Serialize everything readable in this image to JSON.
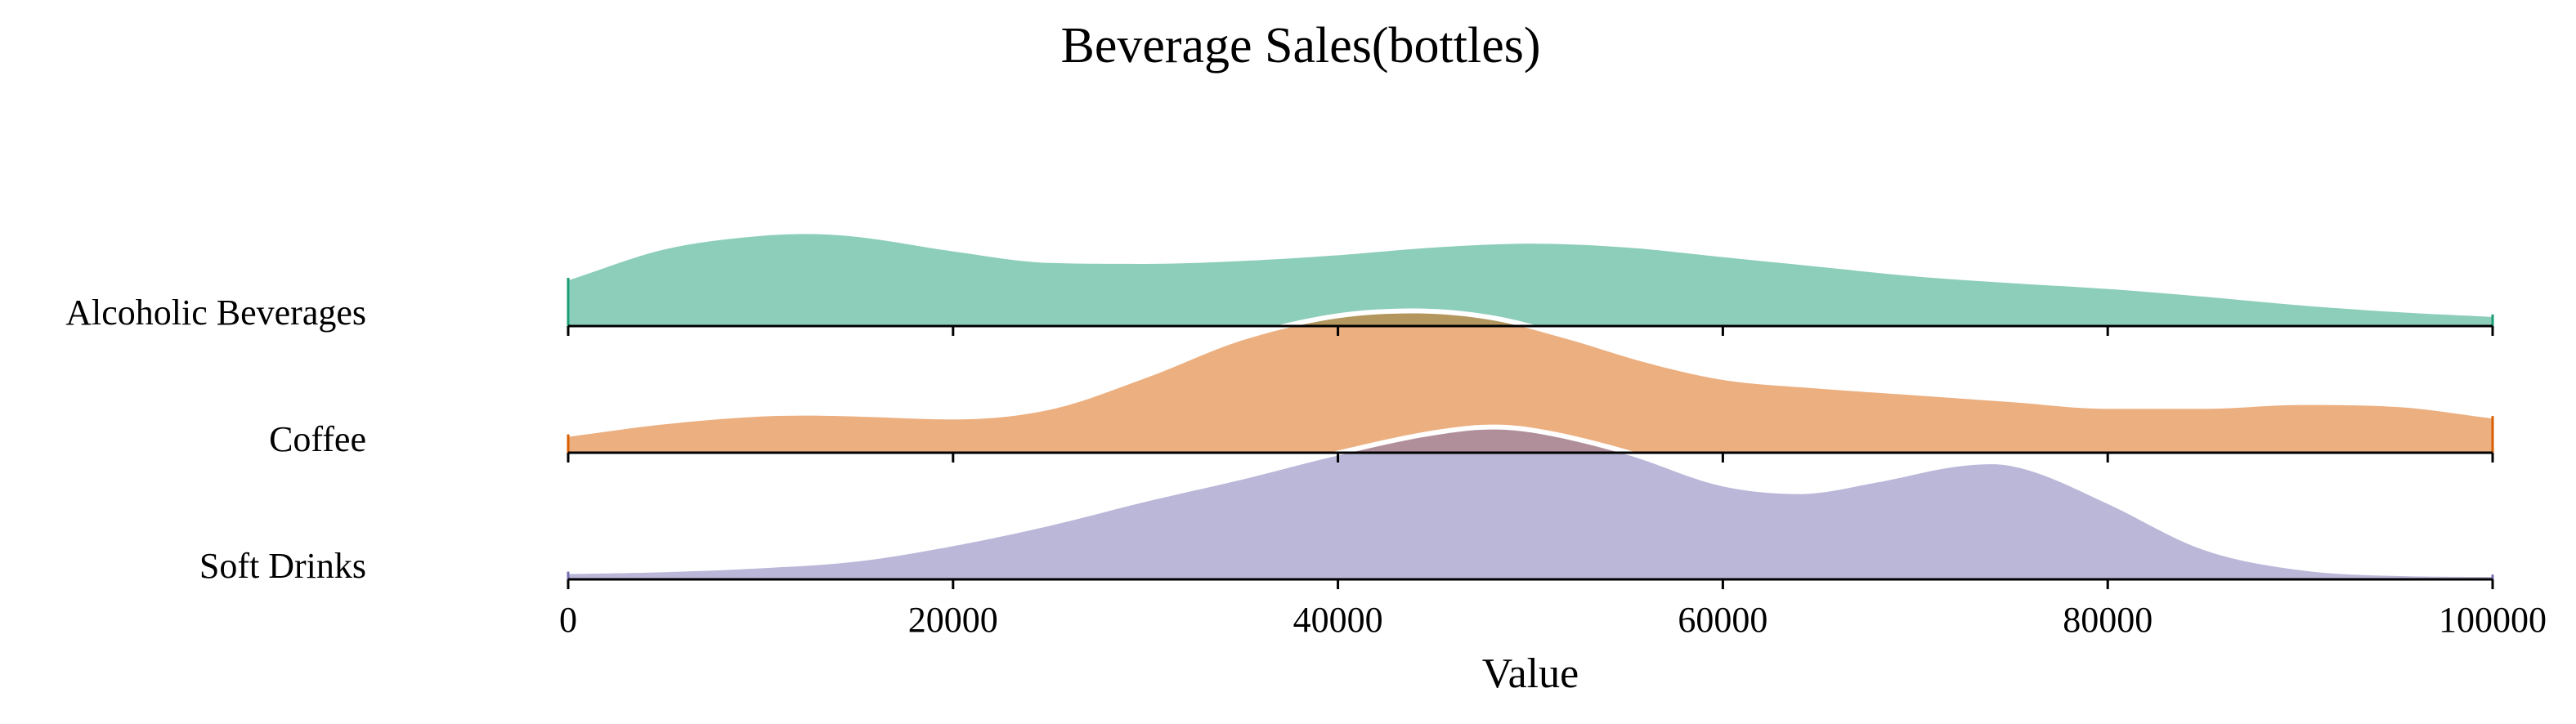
{
  "chart_data": {
    "type": "ridgeline",
    "title": "Beverage Sales(bottles)",
    "xlabel": "Value",
    "xlim": [
      0,
      100000
    ],
    "xticks": [
      0,
      20000,
      40000,
      60000,
      80000,
      100000
    ],
    "grid": false,
    "series": [
      {
        "name": "Alcoholic Beverages",
        "color": "#1b9e77",
        "x": [
          0,
          5000,
          10000,
          12500,
          15000,
          20000,
          25000,
          30000,
          35000,
          40000,
          45000,
          50000,
          55000,
          60000,
          65000,
          70000,
          75000,
          80000,
          85000,
          90000,
          95000,
          100000
        ],
        "density": [
          0.5,
          0.82,
          0.96,
          0.98,
          0.95,
          0.8,
          0.68,
          0.67,
          0.7,
          0.76,
          0.84,
          0.88,
          0.84,
          0.74,
          0.64,
          0.54,
          0.47,
          0.41,
          0.33,
          0.24,
          0.17,
          0.12
        ]
      },
      {
        "name": "Coffee",
        "color": "#d95f02",
        "x": [
          0,
          5000,
          10000,
          12500,
          15000,
          20000,
          25000,
          30000,
          35000,
          40000,
          44000,
          48000,
          52000,
          56000,
          60000,
          65000,
          70000,
          75000,
          80000,
          85000,
          90000,
          95000,
          100000
        ],
        "density": [
          0.19,
          0.32,
          0.4,
          0.41,
          0.4,
          0.37,
          0.47,
          0.8,
          1.19,
          1.42,
          1.47,
          1.4,
          1.2,
          0.96,
          0.78,
          0.69,
          0.62,
          0.55,
          0.48,
          0.48,
          0.52,
          0.5,
          0.38
        ]
      },
      {
        "name": "Soft Drinks",
        "color": "#7570b3",
        "x": [
          0,
          5000,
          10000,
          15000,
          20000,
          25000,
          30000,
          35000,
          40000,
          45000,
          48000,
          50000,
          55000,
          60000,
          64000,
          68000,
          72000,
          74000,
          76000,
          80000,
          85000,
          90000,
          95000,
          100000
        ],
        "density": [
          0.08,
          0.1,
          0.14,
          0.21,
          0.37,
          0.58,
          0.83,
          1.06,
          1.31,
          1.52,
          1.58,
          1.55,
          1.32,
          0.99,
          0.91,
          1.03,
          1.19,
          1.22,
          1.15,
          0.81,
          0.33,
          0.12,
          0.06,
          0.05
        ]
      }
    ]
  }
}
